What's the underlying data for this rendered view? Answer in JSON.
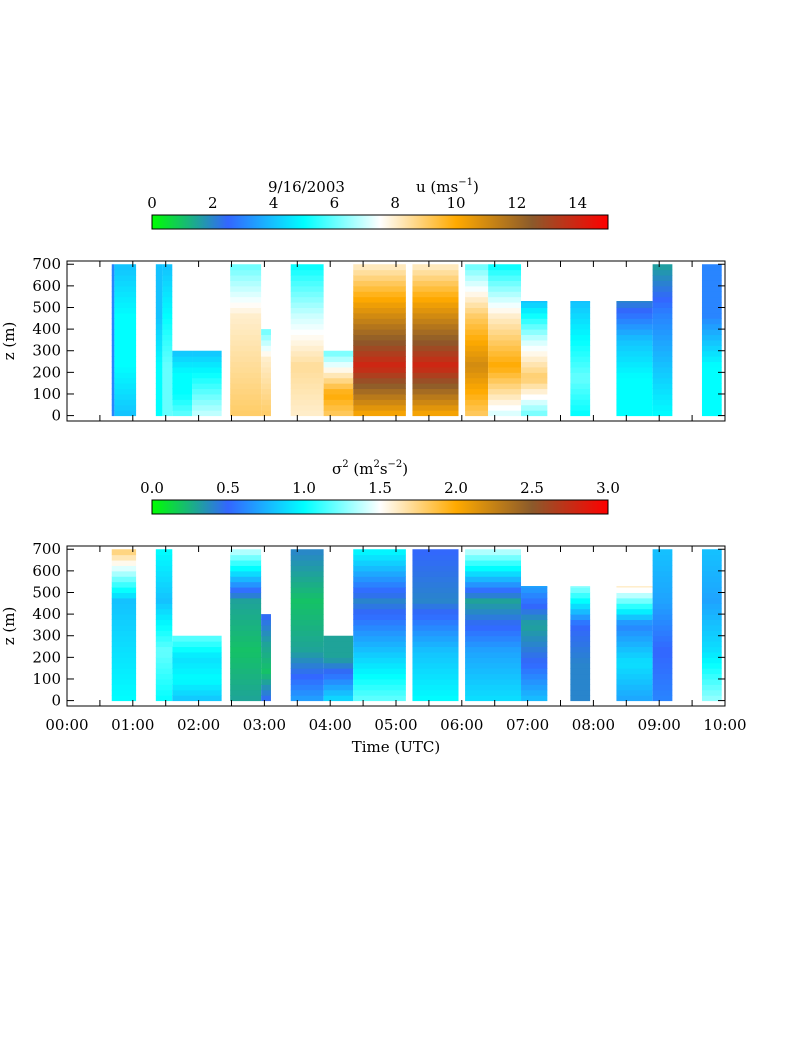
{
  "chart_data": [
    {
      "type": "heatmap",
      "date_label": "9/16/2003",
      "colorbar": {
        "title_base": "u (ms",
        "title_sup": "−1",
        "title_close": ")",
        "ticks": [
          "0",
          "2",
          "4",
          "6",
          "8",
          "10",
          "12",
          "14"
        ],
        "range": [
          0,
          15
        ],
        "colors": [
          "#00ff00",
          "#3366ff",
          "#00ffff",
          "#ffffff",
          "#ffaa00",
          "#8b5a2b",
          "#ff0000"
        ]
      },
      "ylabel": "z (m)",
      "yticks": [
        "0",
        "100",
        "200",
        "300",
        "400",
        "500",
        "600",
        "700"
      ],
      "ylim": [
        -25,
        715
      ],
      "xlim_hours": [
        0,
        10
      ],
      "profiles": [
        {
          "t0": 0.68,
          "t1": 0.72,
          "top": 700,
          "u": [
            3,
            3,
            3,
            3
          ]
        },
        {
          "t0": 0.72,
          "t1": 1.05,
          "top": 700,
          "u": [
            4,
            5,
            5,
            4
          ]
        },
        {
          "t0": 1.35,
          "t1": 1.45,
          "top": 700,
          "u": [
            5,
            5,
            4,
            4
          ]
        },
        {
          "t0": 1.45,
          "t1": 1.6,
          "top": 700,
          "u": [
            6,
            6,
            5,
            4
          ]
        },
        {
          "t0": 1.6,
          "t1": 1.9,
          "top": 300,
          "u": [
            6,
            5,
            5,
            4
          ]
        },
        {
          "t0": 1.9,
          "t1": 2.35,
          "top": 300,
          "u": [
            7,
            6,
            5,
            4
          ]
        },
        {
          "t0": 2.48,
          "t1": 2.95,
          "top": 700,
          "u": [
            9,
            8.5,
            8,
            6
          ]
        },
        {
          "t0": 2.95,
          "t1": 3.1,
          "top": 400,
          "u": [
            9,
            8.5,
            8,
            6
          ]
        },
        {
          "t0": 3.4,
          "t1": 3.9,
          "top": 700,
          "u": [
            8,
            8.5,
            7,
            5
          ]
        },
        {
          "t0": 3.9,
          "t1": 4.35,
          "top": 300,
          "u": [
            9,
            10,
            8,
            6
          ]
        },
        {
          "t0": 4.35,
          "t1": 5.15,
          "top": 700,
          "u": [
            10,
            14,
            11,
            8
          ]
        },
        {
          "t0": 5.25,
          "t1": 5.95,
          "top": 700,
          "u": [
            10,
            14,
            11,
            8
          ]
        },
        {
          "t0": 6.05,
          "t1": 6.4,
          "top": 700,
          "u": [
            9,
            11,
            9,
            6
          ]
        },
        {
          "t0": 6.4,
          "t1": 6.9,
          "top": 700,
          "u": [
            7,
            10,
            8,
            5
          ]
        },
        {
          "t0": 6.9,
          "t1": 7.3,
          "top": 530,
          "u": [
            6,
            9,
            7,
            4
          ]
        },
        {
          "t0": 7.65,
          "t1": 7.95,
          "top": 530,
          "u": [
            5,
            6,
            5,
            4
          ]
        },
        {
          "t0": 8.35,
          "t1": 8.9,
          "top": 530,
          "u": [
            5,
            5,
            4,
            2
          ]
        },
        {
          "t0": 8.9,
          "t1": 9.2,
          "top": 700,
          "u": [
            5,
            4,
            3,
            1.5
          ]
        },
        {
          "t0": 9.65,
          "t1": 9.95,
          "top": 700,
          "u": [
            5,
            5,
            3,
            3
          ]
        }
      ]
    },
    {
      "type": "heatmap",
      "colorbar": {
        "title_base": "σ",
        "title_sup1": "2",
        "title_mid": " (m",
        "title_sup2": "2",
        "title_mid2": "s",
        "title_sup3": "−2",
        "title_close": ")",
        "ticks": [
          "0.0",
          "0.5",
          "1.0",
          "1.5",
          "2.0",
          "2.5",
          "3.0"
        ],
        "range": [
          0,
          3
        ],
        "colors": [
          "#00ff00",
          "#3366ff",
          "#00ffff",
          "#ffffff",
          "#ffaa00",
          "#8b5a2b",
          "#ff0000"
        ]
      },
      "ylabel": "z (m)",
      "yticks": [
        "0",
        "100",
        "200",
        "300",
        "400",
        "500",
        "600",
        "700"
      ],
      "ylim": [
        -25,
        715
      ],
      "xlabel": "Time (UTC)",
      "xticks": [
        "00:00",
        "01:00",
        "02:00",
        "03:00",
        "04:00",
        "05:00",
        "06:00",
        "07:00",
        "08:00",
        "09:00",
        "10:00"
      ],
      "xlim_hours": [
        0,
        10
      ],
      "profiles": [
        {
          "t0": 0.68,
          "t1": 1.05,
          "top": 700,
          "s": [
            1.0,
            0.9,
            0.8,
            1.8
          ]
        },
        {
          "t0": 1.35,
          "t1": 1.6,
          "top": 700,
          "s": [
            1.0,
            1.2,
            0.8,
            1.0
          ]
        },
        {
          "t0": 1.6,
          "t1": 2.35,
          "top": 300,
          "s": [
            0.8,
            1.0,
            0.9,
            1.2
          ]
        },
        {
          "t0": 2.48,
          "t1": 2.95,
          "top": 700,
          "s": [
            0.3,
            0.2,
            0.3,
            1.4
          ]
        },
        {
          "t0": 2.95,
          "t1": 3.1,
          "top": 400,
          "s": [
            0.5,
            0.2,
            0.3,
            0.5
          ]
        },
        {
          "t0": 3.4,
          "t1": 3.9,
          "top": 700,
          "s": [
            0.7,
            0.3,
            0.2,
            0.4
          ]
        },
        {
          "t0": 3.9,
          "t1": 4.35,
          "top": 300,
          "s": [
            0.9,
            0.6,
            0.3,
            0.3
          ]
        },
        {
          "t0": 4.35,
          "t1": 5.15,
          "top": 700,
          "s": [
            1.2,
            0.8,
            0.4,
            1.0
          ]
        },
        {
          "t0": 5.25,
          "t1": 5.95,
          "top": 700,
          "s": [
            1.0,
            0.8,
            0.4,
            0.5
          ]
        },
        {
          "t0": 6.05,
          "t1": 6.9,
          "top": 700,
          "s": [
            0.9,
            0.7,
            0.3,
            1.4
          ]
        },
        {
          "t0": 6.9,
          "t1": 7.3,
          "top": 530,
          "s": [
            0.8,
            0.5,
            0.3,
            0.7
          ]
        },
        {
          "t0": 7.65,
          "t1": 7.95,
          "top": 530,
          "s": [
            0.4,
            0.4,
            0.5,
            1.3
          ]
        },
        {
          "t0": 8.35,
          "t1": 8.9,
          "top": 530,
          "s": [
            0.7,
            0.9,
            0.6,
            1.6
          ]
        },
        {
          "t0": 8.9,
          "t1": 9.2,
          "top": 700,
          "s": [
            0.6,
            0.5,
            0.7,
            0.8
          ]
        },
        {
          "t0": 9.65,
          "t1": 9.95,
          "top": 700,
          "s": [
            1.3,
            0.9,
            0.7,
            0.8
          ]
        }
      ]
    }
  ]
}
